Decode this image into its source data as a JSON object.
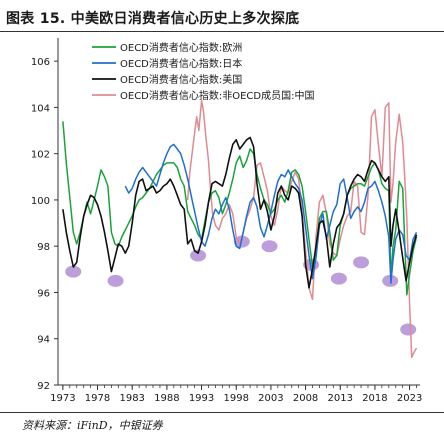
{
  "figure": {
    "title": "图表 15. 中美欧日消费者信心历史上多次探底",
    "source": "资料来源：iFinD，中银证券"
  },
  "colors": {
    "europe": "#1aa33a",
    "japan": "#1f6fd1",
    "usa": "#111111",
    "china": "#e08a92",
    "markers": "#b08ed4"
  },
  "chart_data": {
    "type": "line",
    "xlabel": "",
    "ylabel": "",
    "ylim": [
      92,
      107
    ],
    "xlim": [
      1972.3,
      2024.5
    ],
    "yticks": [
      92,
      94,
      96,
      98,
      100,
      102,
      104,
      106
    ],
    "xticks": [
      1973,
      1978,
      1983,
      1988,
      1993,
      1998,
      2003,
      2008,
      2013,
      2018,
      2023
    ],
    "grid": false,
    "legend": "top-center",
    "series": [
      {
        "name": "OECD消费者信心指数:欧洲",
        "color_key": "europe",
        "x": [
          1973.0,
          1973.5,
          1974.0,
          1974.5,
          1975.0,
          1975.5,
          1976.0,
          1976.5,
          1977.0,
          1977.5,
          1978.0,
          1978.5,
          1979.0,
          1979.5,
          1980.0,
          1980.5,
          1981.0,
          1981.5,
          1982.0,
          1982.5,
          1983.0,
          1983.5,
          1984.0,
          1984.5,
          1985.0,
          1985.5,
          1986.0,
          1986.5,
          1987.0,
          1987.5,
          1988.0,
          1988.5,
          1989.0,
          1989.5,
          1990.0,
          1990.5,
          1991.0,
          1991.5,
          1992.0,
          1992.5,
          1993.0,
          1993.5,
          1994.0,
          1994.5,
          1995.0,
          1995.5,
          1996.0,
          1996.5,
          1997.0,
          1997.5,
          1998.0,
          1998.5,
          1999.0,
          1999.5,
          2000.0,
          2000.5,
          2001.0,
          2001.5,
          2002.0,
          2002.5,
          2003.0,
          2003.5,
          2004.0,
          2004.5,
          2005.0,
          2005.5,
          2006.0,
          2006.5,
          2007.0,
          2007.5,
          2008.0,
          2008.5,
          2009.0,
          2009.5,
          2010.0,
          2010.5,
          2011.0,
          2011.5,
          2012.0,
          2012.5,
          2013.0,
          2013.5,
          2014.0,
          2014.5,
          2015.0,
          2015.5,
          2016.0,
          2016.5,
          2017.0,
          2017.5,
          2018.0,
          2018.5,
          2019.0,
          2019.5,
          2020.0,
          2020.3,
          2020.6,
          2021.0,
          2021.5,
          2022.0,
          2022.3,
          2022.6,
          2023.0,
          2023.5,
          2024.0
        ],
        "values": [
          103.4,
          101.6,
          100.1,
          98.6,
          98.1,
          98.6,
          99.3,
          99.9,
          99.4,
          100.0,
          100.6,
          101.3,
          101.0,
          100.6,
          98.6,
          98.1,
          98.0,
          98.4,
          98.7,
          99.0,
          99.3,
          99.7,
          100.0,
          100.1,
          100.3,
          100.5,
          100.8,
          101.1,
          101.3,
          101.5,
          101.6,
          101.6,
          101.6,
          101.4,
          100.9,
          100.6,
          99.5,
          99.2,
          98.9,
          98.5,
          98.3,
          99.1,
          99.9,
          100.3,
          100.4,
          100.1,
          99.4,
          99.8,
          100.3,
          100.9,
          101.6,
          101.9,
          101.4,
          101.7,
          102.2,
          102.0,
          101.1,
          100.5,
          100.0,
          99.8,
          99.4,
          99.6,
          100.0,
          100.2,
          99.9,
          100.4,
          101.2,
          101.3,
          101.1,
          100.6,
          99.5,
          98.3,
          97.1,
          97.8,
          99.2,
          99.5,
          99.5,
          98.6,
          97.4,
          97.6,
          98.9,
          99.4,
          100.2,
          100.5,
          100.6,
          100.7,
          100.7,
          100.6,
          101.0,
          101.4,
          101.6,
          101.3,
          100.7,
          100.5,
          100.4,
          96.6,
          98.0,
          98.7,
          100.8,
          100.5,
          98.2,
          95.9,
          96.8,
          97.8,
          98.4
        ]
      },
      {
        "name": "OECD消费者信心指数:日本",
        "color_key": "japan",
        "x": [
          1982.0,
          1982.5,
          1983.0,
          1983.5,
          1984.0,
          1984.5,
          1985.0,
          1985.5,
          1986.0,
          1986.5,
          1987.0,
          1987.5,
          1988.0,
          1988.5,
          1989.0,
          1989.5,
          1990.0,
          1990.5,
          1991.0,
          1991.5,
          1992.0,
          1992.5,
          1993.0,
          1993.5,
          1994.0,
          1994.5,
          1995.0,
          1995.5,
          1996.0,
          1996.5,
          1997.0,
          1997.5,
          1998.0,
          1998.5,
          1999.0,
          1999.5,
          2000.0,
          2000.5,
          2001.0,
          2001.5,
          2002.0,
          2002.5,
          2003.0,
          2003.5,
          2004.0,
          2004.5,
          2005.0,
          2005.5,
          2006.0,
          2006.5,
          2007.0,
          2007.5,
          2008.0,
          2008.5,
          2009.0,
          2009.5,
          2010.0,
          2010.5,
          2011.0,
          2011.5,
          2012.0,
          2012.5,
          2013.0,
          2013.5,
          2014.0,
          2014.5,
          2015.0,
          2015.5,
          2016.0,
          2016.5,
          2017.0,
          2017.5,
          2018.0,
          2018.5,
          2019.0,
          2019.5,
          2020.0,
          2020.3,
          2020.6,
          2021.0,
          2021.5,
          2022.0,
          2022.5,
          2023.0,
          2023.5,
          2024.0
        ],
        "values": [
          100.6,
          100.3,
          100.5,
          100.9,
          101.2,
          101.4,
          101.2,
          101.0,
          100.8,
          100.6,
          101.1,
          101.6,
          102.0,
          102.3,
          102.4,
          102.2,
          102.0,
          101.5,
          100.9,
          100.2,
          99.5,
          98.8,
          98.2,
          98.0,
          98.5,
          99.2,
          99.6,
          99.4,
          99.8,
          100.1,
          99.6,
          98.7,
          98.0,
          97.9,
          98.6,
          99.3,
          99.9,
          100.1,
          99.7,
          98.8,
          98.4,
          98.9,
          99.5,
          100.2,
          100.8,
          101.1,
          101.0,
          101.3,
          101.0,
          100.7,
          100.5,
          100.0,
          98.8,
          97.6,
          96.6,
          97.5,
          98.9,
          99.4,
          98.3,
          98.9,
          99.5,
          99.8,
          100.7,
          100.9,
          100.1,
          99.2,
          99.5,
          99.7,
          99.5,
          99.9,
          100.5,
          100.6,
          100.8,
          100.4,
          99.9,
          99.3,
          98.4,
          96.4,
          97.4,
          98.3,
          98.7,
          98.5,
          97.6,
          97.4,
          98.3,
          98.6
        ]
      },
      {
        "name": "OECD消费者信心指数:美国",
        "color_key": "usa",
        "x": [
          1973.0,
          1973.5,
          1974.0,
          1974.5,
          1975.0,
          1975.5,
          1976.0,
          1976.5,
          1977.0,
          1977.5,
          1978.0,
          1978.5,
          1979.0,
          1979.5,
          1980.0,
          1980.5,
          1981.0,
          1981.5,
          1982.0,
          1982.5,
          1983.0,
          1983.5,
          1984.0,
          1984.5,
          1985.0,
          1985.5,
          1986.0,
          1986.5,
          1987.0,
          1987.5,
          1988.0,
          1988.5,
          1989.0,
          1989.5,
          1990.0,
          1990.5,
          1991.0,
          1991.5,
          1992.0,
          1992.5,
          1993.0,
          1993.5,
          1994.0,
          1994.5,
          1995.0,
          1995.5,
          1996.0,
          1996.5,
          1997.0,
          1997.5,
          1998.0,
          1998.5,
          1999.0,
          1999.5,
          2000.0,
          2000.5,
          2001.0,
          2001.5,
          2002.0,
          2002.5,
          2003.0,
          2003.5,
          2004.0,
          2004.5,
          2005.0,
          2005.5,
          2006.0,
          2006.5,
          2007.0,
          2007.5,
          2008.0,
          2008.5,
          2009.0,
          2009.5,
          2010.0,
          2010.5,
          2011.0,
          2011.5,
          2012.0,
          2012.5,
          2013.0,
          2013.5,
          2014.0,
          2014.5,
          2015.0,
          2015.5,
          2016.0,
          2016.5,
          2017.0,
          2017.5,
          2018.0,
          2018.5,
          2019.0,
          2019.5,
          2020.0,
          2020.3,
          2020.6,
          2021.0,
          2021.5,
          2022.0,
          2022.5,
          2023.0,
          2023.5,
          2024.0
        ],
        "values": [
          99.6,
          98.6,
          97.8,
          97.1,
          97.3,
          98.4,
          99.3,
          99.8,
          100.2,
          100.1,
          99.8,
          99.3,
          98.6,
          97.8,
          96.9,
          97.5,
          98.1,
          98.0,
          97.7,
          98.0,
          99.0,
          100.2,
          100.8,
          100.9,
          100.4,
          100.5,
          100.6,
          100.3,
          100.4,
          100.6,
          100.7,
          100.9,
          100.6,
          100.2,
          99.8,
          99.6,
          98.1,
          98.3,
          97.8,
          97.7,
          98.2,
          98.9,
          99.9,
          100.7,
          100.8,
          100.7,
          100.6,
          101.1,
          101.8,
          102.4,
          102.6,
          102.2,
          102.4,
          102.6,
          102.7,
          102.3,
          100.7,
          99.6,
          100.0,
          99.5,
          98.7,
          99.3,
          100.3,
          100.6,
          100.2,
          100.0,
          100.6,
          100.5,
          100.3,
          99.3,
          97.2,
          96.2,
          97.0,
          98.0,
          99.0,
          99.1,
          98.4,
          97.1,
          98.1,
          98.8,
          99.0,
          99.4,
          100.2,
          100.6,
          100.9,
          101.1,
          101.0,
          100.8,
          101.3,
          101.7,
          101.6,
          101.3,
          101.0,
          100.8,
          101.0,
          98.0,
          98.9,
          99.6,
          98.6,
          97.5,
          96.5,
          97.3,
          98.0,
          98.5
        ]
      },
      {
        "name": "OECD消费者信心指数:非OECD成员国:中国",
        "color_key": "china",
        "x": [
          1991.0,
          1991.3,
          1991.6,
          1992.0,
          1992.3,
          1992.6,
          1993.0,
          1993.3,
          1993.6,
          1994.0,
          1994.3,
          1994.6,
          1995.0,
          1995.5,
          1996.0,
          1996.5,
          1997.0,
          1997.5,
          1998.0,
          1998.5,
          1999.0,
          1999.5,
          2000.0,
          2000.5,
          2001.0,
          2001.5,
          2002.0,
          2002.5,
          2003.0,
          2003.5,
          2004.0,
          2004.5,
          2005.0,
          2005.5,
          2006.0,
          2006.5,
          2007.0,
          2007.5,
          2008.0,
          2008.5,
          2009.0,
          2009.5,
          2010.0,
          2010.5,
          2011.0,
          2011.5,
          2012.0,
          2012.5,
          2013.0,
          2013.5,
          2014.0,
          2014.5,
          2015.0,
          2015.5,
          2016.0,
          2016.5,
          2017.0,
          2017.5,
          2018.0,
          2018.5,
          2019.0,
          2019.5,
          2020.0,
          2020.3,
          2020.6,
          2021.0,
          2021.5,
          2022.0,
          2022.3,
          2022.6,
          2023.0,
          2023.3,
          2023.6,
          2024.0
        ],
        "values": [
          100.0,
          101.2,
          101.9,
          102.9,
          103.6,
          103.0,
          104.3,
          103.8,
          102.8,
          101.7,
          100.4,
          99.4,
          98.9,
          98.7,
          99.2,
          99.4,
          99.8,
          99.4,
          98.4,
          98.1,
          98.6,
          99.2,
          99.6,
          100.1,
          101.5,
          101.6,
          101.0,
          100.4,
          99.3,
          98.9,
          99.6,
          100.6,
          100.4,
          100.3,
          100.8,
          101.2,
          100.9,
          99.5,
          97.8,
          96.2,
          95.7,
          98.4,
          99.9,
          100.2,
          99.4,
          98.1,
          97.7,
          97.6,
          98.3,
          98.9,
          99.3,
          99.5,
          100.8,
          100.6,
          98.6,
          98.5,
          100.2,
          103.6,
          103.9,
          102.4,
          101.0,
          104.0,
          104.2,
          99.9,
          100.7,
          102.5,
          103.7,
          102.5,
          101.0,
          99.2,
          95.5,
          93.2,
          93.4,
          93.6
        ]
      }
    ],
    "trough_markers": [
      {
        "x": 1974.5,
        "y": 96.9
      },
      {
        "x": 1980.6,
        "y": 96.5
      },
      {
        "x": 1992.5,
        "y": 97.6
      },
      {
        "x": 1998.8,
        "y": 98.2
      },
      {
        "x": 2002.8,
        "y": 98.0
      },
      {
        "x": 2008.8,
        "y": 97.2
      },
      {
        "x": 2012.8,
        "y": 96.6
      },
      {
        "x": 2016.0,
        "y": 97.3
      },
      {
        "x": 2020.2,
        "y": 96.5
      },
      {
        "x": 2022.8,
        "y": 94.4
      }
    ]
  }
}
